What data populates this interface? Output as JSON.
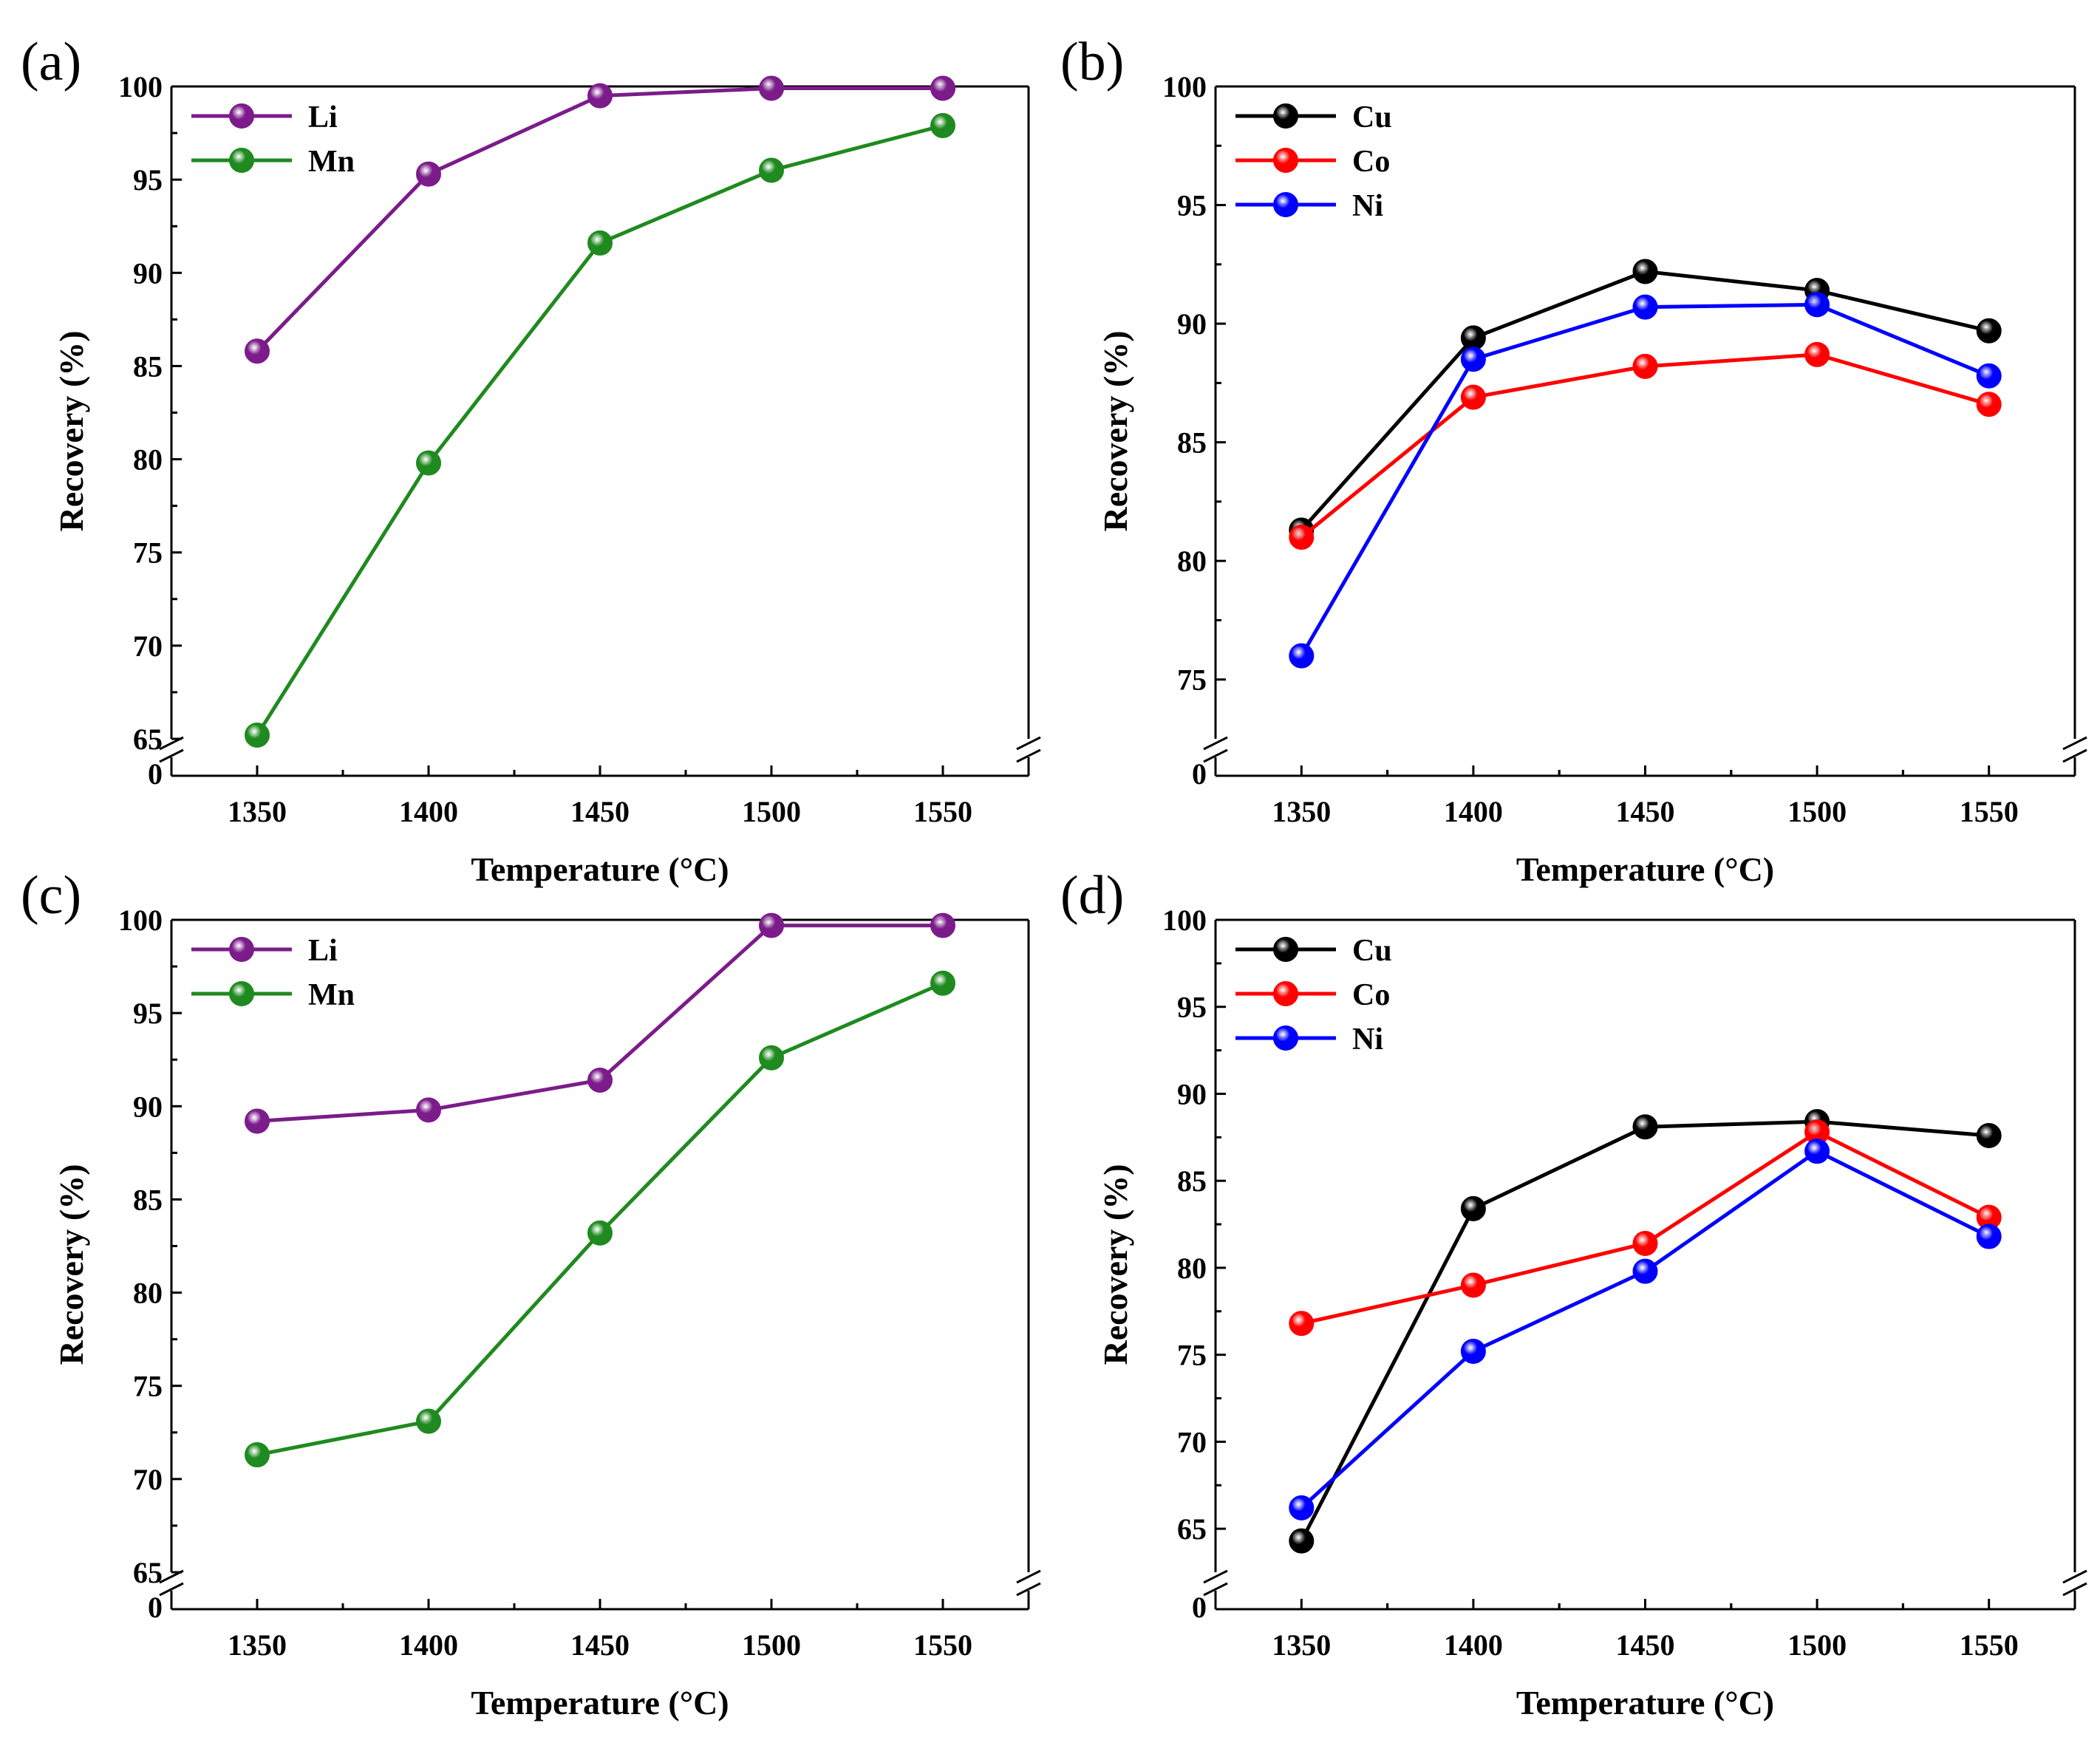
{
  "figure": {
    "description_units": "Recovery (%) vs Temperature (°C)"
  },
  "chart_data": [
    {
      "id": "a",
      "panel_label": "(a)",
      "type": "line",
      "xlabel": "Temperature (°C)",
      "ylabel": "Recovery (%)",
      "x": [
        1350,
        1400,
        1450,
        1500,
        1550
      ],
      "xlim": [
        1325,
        1575
      ],
      "ylim": [
        65,
        100
      ],
      "y_break": true,
      "y_ticks": [
        65,
        70,
        75,
        80,
        85,
        90,
        95,
        100
      ],
      "y_tick_labels": [
        "65",
        "70",
        "75",
        "80",
        "85",
        "90",
        "95",
        "100"
      ],
      "x_ticks": [
        1350,
        1400,
        1450,
        1500,
        1550
      ],
      "x_tick_labels": [
        "1350",
        "1400",
        "1450",
        "1500",
        "1550"
      ],
      "zero_label": "0",
      "legend_position": "top-left",
      "series": [
        {
          "name": "Li",
          "color": "#7b1c8a",
          "values": [
            85.8,
            95.3,
            99.5,
            99.9,
            99.9
          ]
        },
        {
          "name": "Mn",
          "color": "#1f8a1f",
          "values": [
            65.2,
            79.8,
            91.6,
            95.5,
            97.9
          ]
        }
      ]
    },
    {
      "id": "b",
      "panel_label": "(b)",
      "type": "line",
      "xlabel": "Temperature (°C)",
      "ylabel": "Recovery (%)",
      "x": [
        1350,
        1400,
        1450,
        1500,
        1550
      ],
      "xlim": [
        1325,
        1575
      ],
      "ylim": [
        72.5,
        100
      ],
      "y_break": true,
      "y_ticks": [
        75,
        80,
        85,
        90,
        95,
        100
      ],
      "y_tick_labels": [
        "75",
        "80",
        "85",
        "90",
        "95",
        "100"
      ],
      "x_ticks": [
        1350,
        1400,
        1450,
        1500,
        1550
      ],
      "x_tick_labels": [
        "1350",
        "1400",
        "1450",
        "1500",
        "1550"
      ],
      "zero_label": "0",
      "legend_position": "top-left",
      "series": [
        {
          "name": "Cu",
          "color": "#000000",
          "values": [
            81.3,
            89.4,
            92.2,
            91.4,
            89.7
          ]
        },
        {
          "name": "Co",
          "color": "#ff0000",
          "values": [
            81.0,
            86.9,
            88.2,
            88.7,
            86.6
          ]
        },
        {
          "name": "Ni",
          "color": "#0000ff",
          "values": [
            76.0,
            88.5,
            90.7,
            90.8,
            87.8
          ]
        }
      ]
    },
    {
      "id": "c",
      "panel_label": "(c)",
      "type": "line",
      "xlabel": "Temperature (°C)",
      "ylabel": "Recovery (%)",
      "x": [
        1350,
        1400,
        1450,
        1500,
        1550
      ],
      "xlim": [
        1325,
        1575
      ],
      "ylim": [
        65,
        100
      ],
      "y_break": true,
      "y_ticks": [
        65,
        70,
        75,
        80,
        85,
        90,
        95,
        100
      ],
      "y_tick_labels": [
        "65",
        "70",
        "75",
        "80",
        "85",
        "90",
        "95",
        "100"
      ],
      "x_ticks": [
        1350,
        1400,
        1450,
        1500,
        1550
      ],
      "x_tick_labels": [
        "1350",
        "1400",
        "1450",
        "1500",
        "1550"
      ],
      "zero_label": "0",
      "legend_position": "top-left",
      "series": [
        {
          "name": "Li",
          "color": "#7b1c8a",
          "values": [
            89.2,
            89.8,
            91.4,
            99.7,
            99.7
          ]
        },
        {
          "name": "Mn",
          "color": "#1f8a1f",
          "values": [
            71.3,
            73.1,
            83.2,
            92.6,
            96.6
          ]
        }
      ]
    },
    {
      "id": "d",
      "panel_label": "(d)",
      "type": "line",
      "xlabel": "Temperature (°C)",
      "ylabel": "Recovery (%)",
      "x": [
        1350,
        1400,
        1450,
        1500,
        1550
      ],
      "xlim": [
        1325,
        1575
      ],
      "ylim": [
        62.5,
        100
      ],
      "y_break": true,
      "y_ticks": [
        65,
        70,
        75,
        80,
        85,
        90,
        95,
        100
      ],
      "y_tick_labels": [
        "65",
        "70",
        "75",
        "80",
        "85",
        "90",
        "95",
        "100"
      ],
      "x_ticks": [
        1350,
        1400,
        1450,
        1500,
        1550
      ],
      "x_tick_labels": [
        "1350",
        "1400",
        "1450",
        "1500",
        "1550"
      ],
      "zero_label": "0",
      "legend_position": "top-left",
      "series": [
        {
          "name": "Cu",
          "color": "#000000",
          "values": [
            64.3,
            83.4,
            88.1,
            88.4,
            87.6
          ]
        },
        {
          "name": "Co",
          "color": "#ff0000",
          "values": [
            76.8,
            79.0,
            81.4,
            87.8,
            82.9
          ]
        },
        {
          "name": "Ni",
          "color": "#0000ff",
          "values": [
            66.2,
            75.2,
            79.8,
            86.7,
            81.8
          ]
        }
      ]
    }
  ]
}
